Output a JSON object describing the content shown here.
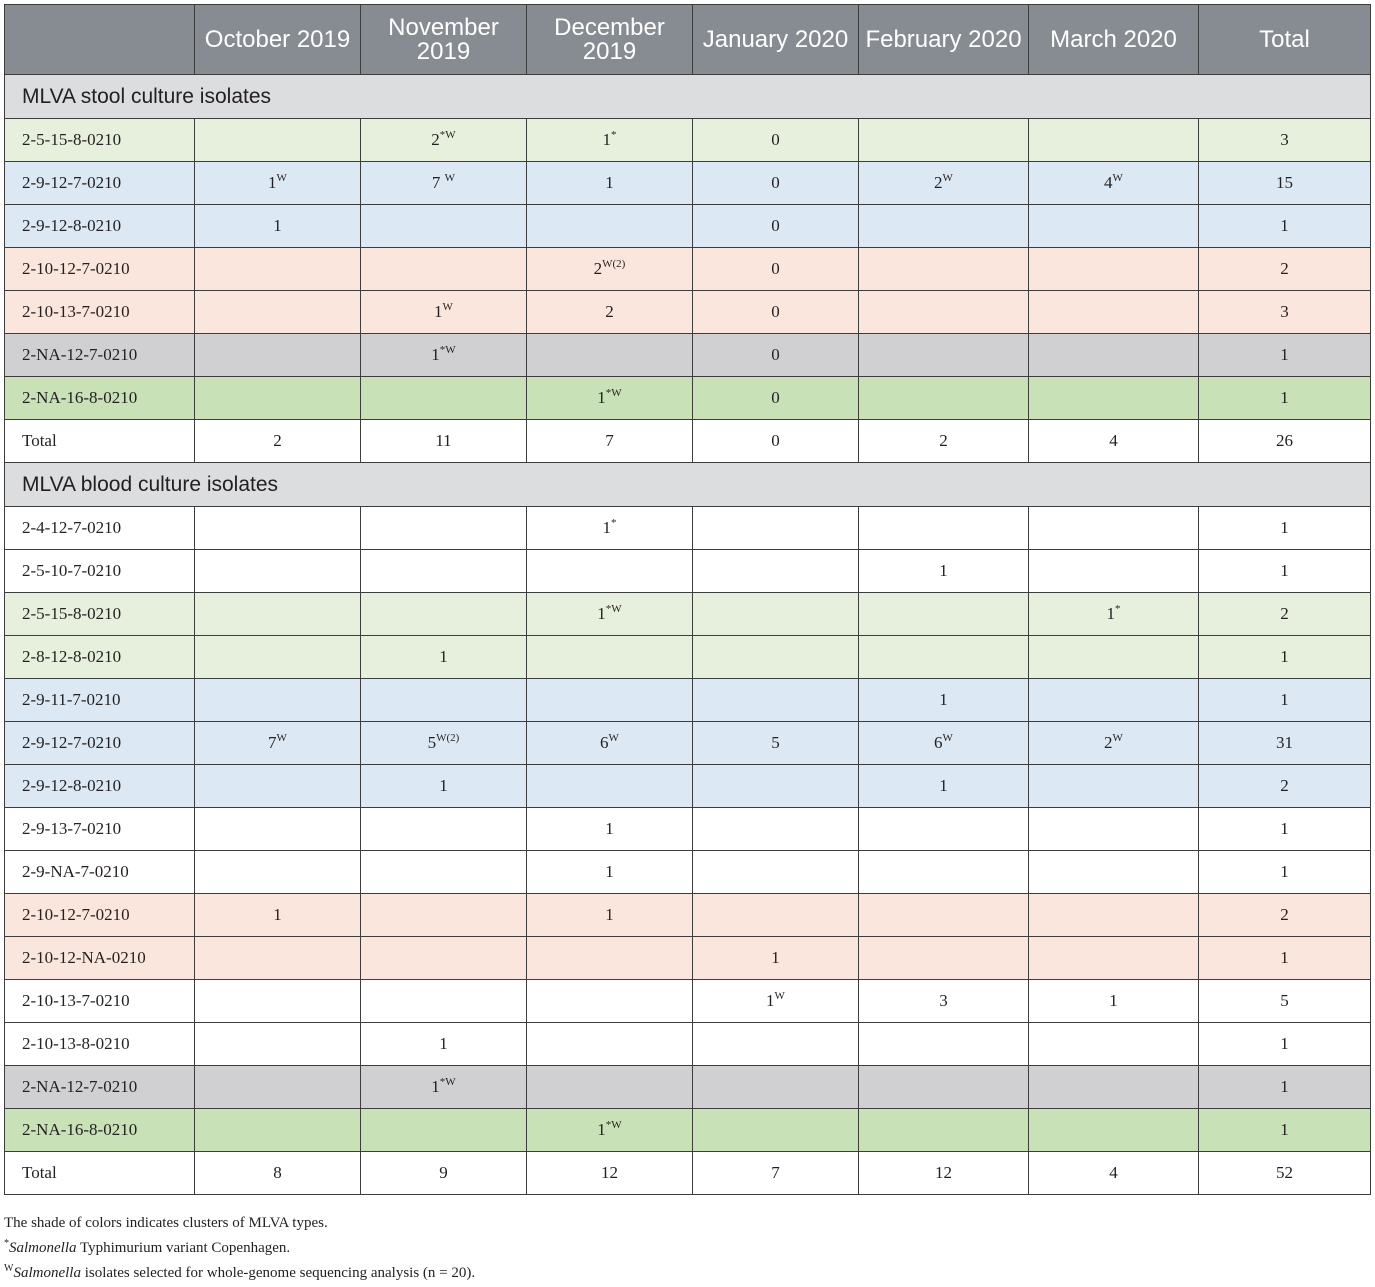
{
  "columns": [
    "",
    "October 2019",
    "November 2019",
    "December 2019",
    "January 2020",
    "February 2020",
    "March 2020",
    "Total"
  ],
  "sections": [
    {
      "title": "MLVA stool culture isolates",
      "rows": [
        {
          "color": "lightgreen",
          "label": "2-5-15-8-0210",
          "cells": [
            {
              "v": "",
              "s": ""
            },
            {
              "v": "2",
              "s": "*W"
            },
            {
              "v": "1",
              "s": "*"
            },
            {
              "v": "0",
              "s": ""
            },
            {
              "v": "",
              "s": ""
            },
            {
              "v": "",
              "s": ""
            },
            {
              "v": "3",
              "s": ""
            }
          ]
        },
        {
          "color": "blue",
          "label": "2-9-12-7-0210",
          "cells": [
            {
              "v": "1",
              "s": "W"
            },
            {
              "v": "7 ",
              "s": "W"
            },
            {
              "v": "1",
              "s": ""
            },
            {
              "v": "0",
              "s": ""
            },
            {
              "v": "2",
              "s": "W"
            },
            {
              "v": "4",
              "s": "W"
            },
            {
              "v": "15",
              "s": ""
            }
          ]
        },
        {
          "color": "blue",
          "label": "2-9-12-8-0210",
          "cells": [
            {
              "v": "1",
              "s": ""
            },
            {
              "v": "",
              "s": ""
            },
            {
              "v": "",
              "s": ""
            },
            {
              "v": "0",
              "s": ""
            },
            {
              "v": "",
              "s": ""
            },
            {
              "v": "",
              "s": ""
            },
            {
              "v": "1",
              "s": ""
            }
          ]
        },
        {
          "color": "peach",
          "label": "2-10-12-7-0210",
          "cells": [
            {
              "v": "",
              "s": ""
            },
            {
              "v": "",
              "s": ""
            },
            {
              "v": "2",
              "s": "W(2)"
            },
            {
              "v": "0",
              "s": ""
            },
            {
              "v": "",
              "s": ""
            },
            {
              "v": "",
              "s": ""
            },
            {
              "v": "2",
              "s": ""
            }
          ]
        },
        {
          "color": "peach",
          "label": "2-10-13-7-0210",
          "cells": [
            {
              "v": "",
              "s": ""
            },
            {
              "v": "1",
              "s": "W"
            },
            {
              "v": "2",
              "s": ""
            },
            {
              "v": "0",
              "s": ""
            },
            {
              "v": "",
              "s": ""
            },
            {
              "v": "",
              "s": ""
            },
            {
              "v": "3",
              "s": ""
            }
          ]
        },
        {
          "color": "grey",
          "label": "2-NA-12-7-0210",
          "cells": [
            {
              "v": "",
              "s": ""
            },
            {
              "v": "1",
              "s": "*W"
            },
            {
              "v": "",
              "s": ""
            },
            {
              "v": "0",
              "s": ""
            },
            {
              "v": "",
              "s": ""
            },
            {
              "v": "",
              "s": ""
            },
            {
              "v": "1",
              "s": ""
            }
          ]
        },
        {
          "color": "green",
          "label": "2-NA-16-8-0210",
          "cells": [
            {
              "v": "",
              "s": ""
            },
            {
              "v": "",
              "s": ""
            },
            {
              "v": "1",
              "s": "*W"
            },
            {
              "v": "0",
              "s": ""
            },
            {
              "v": "",
              "s": ""
            },
            {
              "v": "",
              "s": ""
            },
            {
              "v": "1",
              "s": ""
            }
          ]
        },
        {
          "color": "white",
          "label": "Total",
          "cells": [
            {
              "v": "2",
              "s": ""
            },
            {
              "v": "11",
              "s": ""
            },
            {
              "v": "7",
              "s": ""
            },
            {
              "v": "0",
              "s": ""
            },
            {
              "v": "2",
              "s": ""
            },
            {
              "v": "4",
              "s": ""
            },
            {
              "v": "26",
              "s": ""
            }
          ]
        }
      ]
    },
    {
      "title": "MLVA blood culture isolates",
      "rows": [
        {
          "color": "white",
          "label": "2-4-12-7-0210",
          "cells": [
            {
              "v": "",
              "s": ""
            },
            {
              "v": "",
              "s": ""
            },
            {
              "v": "1",
              "s": "*"
            },
            {
              "v": "",
              "s": ""
            },
            {
              "v": "",
              "s": ""
            },
            {
              "v": "",
              "s": ""
            },
            {
              "v": "1",
              "s": ""
            }
          ]
        },
        {
          "color": "white",
          "label": "2-5-10-7-0210",
          "cells": [
            {
              "v": "",
              "s": ""
            },
            {
              "v": "",
              "s": ""
            },
            {
              "v": "",
              "s": ""
            },
            {
              "v": "",
              "s": ""
            },
            {
              "v": "1",
              "s": ""
            },
            {
              "v": "",
              "s": ""
            },
            {
              "v": "1",
              "s": ""
            }
          ]
        },
        {
          "color": "lightgreen",
          "label": "2-5-15-8-0210",
          "cells": [
            {
              "v": "",
              "s": ""
            },
            {
              "v": "",
              "s": ""
            },
            {
              "v": "1",
              "s": "*W"
            },
            {
              "v": "",
              "s": ""
            },
            {
              "v": "",
              "s": ""
            },
            {
              "v": "1",
              "s": "*"
            },
            {
              "v": "2",
              "s": ""
            }
          ]
        },
        {
          "color": "lightgreen",
          "label": "2-8-12-8-0210",
          "cells": [
            {
              "v": "",
              "s": ""
            },
            {
              "v": "1",
              "s": ""
            },
            {
              "v": "",
              "s": ""
            },
            {
              "v": "",
              "s": ""
            },
            {
              "v": "",
              "s": ""
            },
            {
              "v": "",
              "s": ""
            },
            {
              "v": "1",
              "s": ""
            }
          ]
        },
        {
          "color": "blue",
          "label": "2-9-11-7-0210",
          "cells": [
            {
              "v": "",
              "s": ""
            },
            {
              "v": "",
              "s": ""
            },
            {
              "v": "",
              "s": ""
            },
            {
              "v": "",
              "s": ""
            },
            {
              "v": "1",
              "s": ""
            },
            {
              "v": "",
              "s": ""
            },
            {
              "v": "1",
              "s": ""
            }
          ]
        },
        {
          "color": "blue",
          "label": "2-9-12-7-0210",
          "cells": [
            {
              "v": "7",
              "s": "W"
            },
            {
              "v": "5",
              "s": "W(2)"
            },
            {
              "v": "6",
              "s": "W"
            },
            {
              "v": "5",
              "s": ""
            },
            {
              "v": "6",
              "s": "W"
            },
            {
              "v": "2",
              "s": "W"
            },
            {
              "v": "31",
              "s": ""
            }
          ]
        },
        {
          "color": "blue",
          "label": "2-9-12-8-0210",
          "cells": [
            {
              "v": "",
              "s": ""
            },
            {
              "v": "1",
              "s": ""
            },
            {
              "v": "",
              "s": ""
            },
            {
              "v": "",
              "s": ""
            },
            {
              "v": "1",
              "s": ""
            },
            {
              "v": "",
              "s": ""
            },
            {
              "v": "2",
              "s": ""
            }
          ]
        },
        {
          "color": "white",
          "label": "2-9-13-7-0210",
          "cells": [
            {
              "v": "",
              "s": ""
            },
            {
              "v": "",
              "s": ""
            },
            {
              "v": "1",
              "s": ""
            },
            {
              "v": "",
              "s": ""
            },
            {
              "v": "",
              "s": ""
            },
            {
              "v": "",
              "s": ""
            },
            {
              "v": "1",
              "s": ""
            }
          ]
        },
        {
          "color": "white",
          "label": "2-9-NA-7-0210",
          "cells": [
            {
              "v": "",
              "s": ""
            },
            {
              "v": "",
              "s": ""
            },
            {
              "v": "1",
              "s": ""
            },
            {
              "v": "",
              "s": ""
            },
            {
              "v": "",
              "s": ""
            },
            {
              "v": "",
              "s": ""
            },
            {
              "v": "1",
              "s": ""
            }
          ]
        },
        {
          "color": "peach",
          "label": "2-10-12-7-0210",
          "cells": [
            {
              "v": "1",
              "s": ""
            },
            {
              "v": "",
              "s": ""
            },
            {
              "v": "1",
              "s": ""
            },
            {
              "v": "",
              "s": ""
            },
            {
              "v": "",
              "s": ""
            },
            {
              "v": "",
              "s": ""
            },
            {
              "v": "2",
              "s": ""
            }
          ]
        },
        {
          "color": "peach",
          "label": "2-10-12-NA-0210",
          "cells": [
            {
              "v": "",
              "s": ""
            },
            {
              "v": "",
              "s": ""
            },
            {
              "v": "",
              "s": ""
            },
            {
              "v": "1",
              "s": ""
            },
            {
              "v": "",
              "s": ""
            },
            {
              "v": "",
              "s": ""
            },
            {
              "v": "1",
              "s": ""
            }
          ]
        },
        {
          "color": "white",
          "label": "2-10-13-7-0210",
          "cells": [
            {
              "v": "",
              "s": ""
            },
            {
              "v": "",
              "s": ""
            },
            {
              "v": "",
              "s": ""
            },
            {
              "v": "1",
              "s": "W"
            },
            {
              "v": "3",
              "s": ""
            },
            {
              "v": "1",
              "s": ""
            },
            {
              "v": "5",
              "s": ""
            }
          ]
        },
        {
          "color": "white",
          "label": "2-10-13-8-0210",
          "cells": [
            {
              "v": "",
              "s": ""
            },
            {
              "v": "1",
              "s": ""
            },
            {
              "v": "",
              "s": ""
            },
            {
              "v": "",
              "s": ""
            },
            {
              "v": "",
              "s": ""
            },
            {
              "v": "",
              "s": ""
            },
            {
              "v": "1",
              "s": ""
            }
          ]
        },
        {
          "color": "grey",
          "label": "2-NA-12-7-0210",
          "cells": [
            {
              "v": "",
              "s": ""
            },
            {
              "v": "1",
              "s": "*W"
            },
            {
              "v": "",
              "s": ""
            },
            {
              "v": "",
              "s": ""
            },
            {
              "v": "",
              "s": ""
            },
            {
              "v": "",
              "s": ""
            },
            {
              "v": "1",
              "s": ""
            }
          ]
        },
        {
          "color": "green",
          "label": "2-NA-16-8-0210",
          "cells": [
            {
              "v": "",
              "s": ""
            },
            {
              "v": "",
              "s": ""
            },
            {
              "v": "1",
              "s": "*W"
            },
            {
              "v": "",
              "s": ""
            },
            {
              "v": "",
              "s": ""
            },
            {
              "v": "",
              "s": ""
            },
            {
              "v": "1",
              "s": ""
            }
          ]
        },
        {
          "color": "white",
          "label": "Total",
          "cells": [
            {
              "v": "8",
              "s": ""
            },
            {
              "v": "9",
              "s": ""
            },
            {
              "v": "12",
              "s": ""
            },
            {
              "v": "7",
              "s": ""
            },
            {
              "v": "12",
              "s": ""
            },
            {
              "v": "4",
              "s": ""
            },
            {
              "v": "52",
              "s": ""
            }
          ]
        }
      ]
    }
  ],
  "footnotes": {
    "line1": "The shade of colors indicates clusters of MLVA types.",
    "line2": {
      "mark": "*",
      "italic": "Salmonella",
      "text": " Typhimurium variant Copenhagen."
    },
    "line3": {
      "mark": "W",
      "italic": "Salmonella",
      "text": " isolates selected for whole-genome sequencing analysis (n = 20)."
    }
  },
  "colors": {
    "header_bg": "#868c91",
    "section_bg": "#dcdddf",
    "lightgreen": "#e6f0dc",
    "blue": "#dce9f4",
    "peach": "#fae6dc",
    "grey": "#d0cfd1",
    "green": "#c9e1b6",
    "white": "#ffffff"
  }
}
